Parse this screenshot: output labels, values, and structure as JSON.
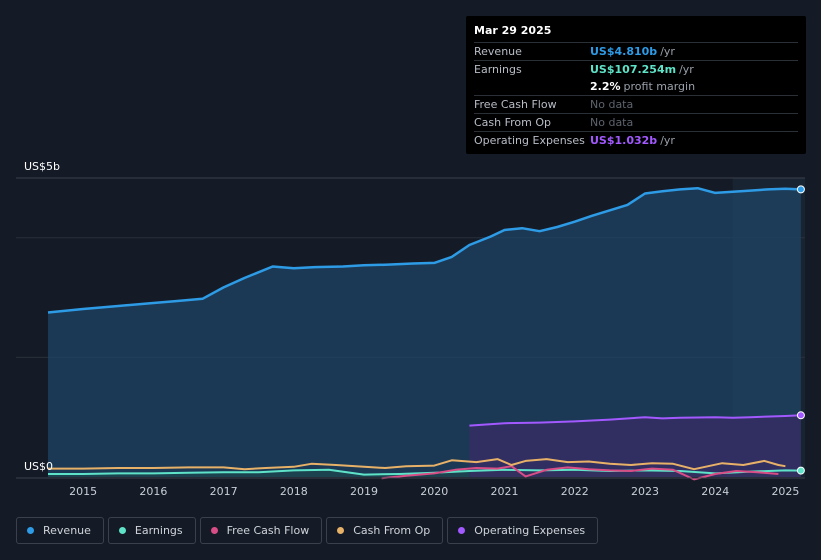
{
  "tooltip": {
    "date": "Mar 29 2025",
    "rows": [
      {
        "label": "Revenue",
        "value": "US$4.810b",
        "suffix": "/yr",
        "color": "#2e9be6"
      },
      {
        "label": "Earnings",
        "value": "US$107.254m",
        "suffix": "/yr",
        "color": "#5fe3c8"
      },
      {
        "label": "",
        "value": "2.2%",
        "suffix": "profit margin",
        "color": "#ffffff"
      },
      {
        "label": "Free Cash Flow",
        "value": "No data",
        "suffix": "",
        "color": "#5d636d"
      },
      {
        "label": "Cash From Op",
        "value": "No data",
        "suffix": "",
        "color": "#5d636d"
      },
      {
        "label": "Operating Expenses",
        "value": "US$1.032b",
        "suffix": "/yr",
        "color": "#a259ff"
      }
    ]
  },
  "legend": [
    {
      "label": "Revenue",
      "color": "#2e9be6"
    },
    {
      "label": "Earnings",
      "color": "#5fe3c8"
    },
    {
      "label": "Free Cash Flow",
      "color": "#d94d86"
    },
    {
      "label": "Cash From Op",
      "color": "#e8b168"
    },
    {
      "label": "Operating Expenses",
      "color": "#a259ff"
    }
  ],
  "chart_data": {
    "type": "area",
    "title": "",
    "xlabel": "",
    "ylabel": "",
    "y_top_label": "US$5b",
    "y_bottom_label": "US$0",
    "ylim": [
      0,
      5.0
    ],
    "xlim": [
      2014.5,
      2025.25
    ],
    "x_ticks": [
      "2015",
      "2016",
      "2017",
      "2018",
      "2019",
      "2020",
      "2021",
      "2022",
      "2023",
      "2024",
      "2025"
    ],
    "series": [
      {
        "name": "Revenue",
        "color": "#2e9be6",
        "x": [
          2014.5,
          2015.0,
          2015.5,
          2016.0,
          2016.3,
          2016.7,
          2017.0,
          2017.3,
          2017.7,
          2018.0,
          2018.3,
          2018.7,
          2019.0,
          2019.3,
          2019.7,
          2020.0,
          2020.25,
          2020.5,
          2020.8,
          2021.0,
          2021.25,
          2021.5,
          2021.75,
          2022.0,
          2022.25,
          2022.5,
          2022.75,
          2023.0,
          2023.25,
          2023.5,
          2023.75,
          2024.0,
          2024.25,
          2024.5,
          2024.75,
          2025.0,
          2025.22
        ],
        "values": [
          2.75,
          2.81,
          2.86,
          2.91,
          2.94,
          2.98,
          3.17,
          3.33,
          3.52,
          3.49,
          3.51,
          3.52,
          3.54,
          3.55,
          3.57,
          3.58,
          3.68,
          3.88,
          4.02,
          4.13,
          4.16,
          4.11,
          4.18,
          4.27,
          4.37,
          4.46,
          4.55,
          4.74,
          4.78,
          4.81,
          4.83,
          4.75,
          4.77,
          4.79,
          4.81,
          4.82,
          4.81
        ]
      },
      {
        "name": "Earnings",
        "color": "#5fe3c8",
        "x": [
          2014.5,
          2015.0,
          2015.5,
          2016.0,
          2016.5,
          2017.0,
          2017.5,
          2018.0,
          2018.5,
          2019.0,
          2019.5,
          2020.0,
          2020.5,
          2021.0,
          2021.5,
          2022.0,
          2022.5,
          2023.0,
          2023.5,
          2024.0,
          2024.5,
          2025.0,
          2025.22
        ],
        "values": [
          0.05,
          0.05,
          0.06,
          0.06,
          0.07,
          0.08,
          0.08,
          0.11,
          0.12,
          0.04,
          0.05,
          0.07,
          0.1,
          0.12,
          0.11,
          0.12,
          0.1,
          0.11,
          0.1,
          0.06,
          0.09,
          0.11,
          0.107
        ]
      },
      {
        "name": "Free Cash Flow",
        "color": "#d94d86",
        "x": [
          2019.25,
          2019.6,
          2020.0,
          2020.3,
          2020.6,
          2020.9,
          2021.1,
          2021.3,
          2021.6,
          2021.9,
          2022.2,
          2022.5,
          2022.8,
          2023.1,
          2023.4,
          2023.7,
          2024.0,
          2024.3,
          2024.6,
          2024.9
        ],
        "values": [
          -0.02,
          0.02,
          0.06,
          0.12,
          0.15,
          0.14,
          0.18,
          0.01,
          0.12,
          0.16,
          0.13,
          0.11,
          0.1,
          0.14,
          0.12,
          -0.04,
          0.05,
          0.1,
          0.08,
          0.05
        ]
      },
      {
        "name": "Cash From Op",
        "color": "#e8b168",
        "x": [
          2014.5,
          2015.0,
          2015.5,
          2016.0,
          2016.5,
          2017.0,
          2017.3,
          2017.6,
          2018.0,
          2018.25,
          2018.6,
          2019.0,
          2019.3,
          2019.6,
          2020.0,
          2020.25,
          2020.6,
          2020.9,
          2021.1,
          2021.3,
          2021.6,
          2021.9,
          2022.2,
          2022.5,
          2022.8,
          2023.1,
          2023.4,
          2023.7,
          2023.9,
          2024.1,
          2024.4,
          2024.7,
          2024.9,
          2025.0
        ],
        "values": [
          0.14,
          0.14,
          0.15,
          0.15,
          0.16,
          0.16,
          0.13,
          0.15,
          0.17,
          0.22,
          0.2,
          0.17,
          0.15,
          0.18,
          0.19,
          0.28,
          0.25,
          0.3,
          0.2,
          0.27,
          0.3,
          0.25,
          0.26,
          0.22,
          0.2,
          0.23,
          0.22,
          0.13,
          0.18,
          0.23,
          0.2,
          0.27,
          0.2,
          0.18
        ]
      },
      {
        "name": "Operating Expenses",
        "color": "#a259ff",
        "x": [
          2020.5,
          2021.0,
          2021.5,
          2022.0,
          2022.5,
          2023.0,
          2023.25,
          2023.5,
          2024.0,
          2024.25,
          2024.5,
          2025.0,
          2025.22
        ],
        "values": [
          0.86,
          0.9,
          0.91,
          0.93,
          0.96,
          1.0,
          0.98,
          0.99,
          1.0,
          0.99,
          1.0,
          1.02,
          1.032
        ]
      }
    ],
    "highlight_from": 2024.25
  }
}
